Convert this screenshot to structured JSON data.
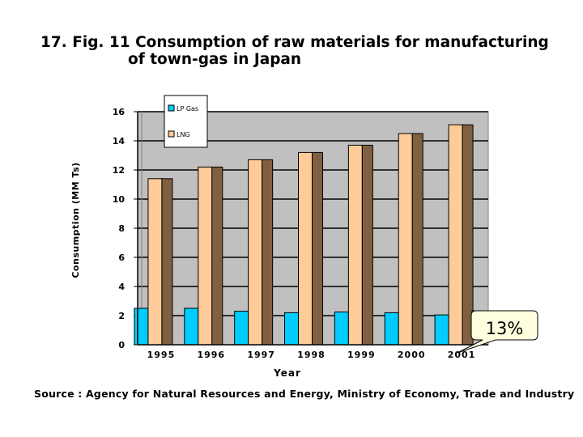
{
  "title_line1": "17. Fig. 11  Consumption of raw materials for manufacturing",
  "title_line2": "of town-gas in Japan",
  "source": "Source : Agency for Natural Resources and Energy, Ministry of Economy, Trade and Industry",
  "callout": "13%",
  "colors": {
    "lp": "#00CCFF",
    "lng": "#FFCC99",
    "lng_side": "#806040",
    "plot_bg": "#C0C0C0"
  },
  "chart_data": {
    "type": "bar",
    "title": "Consumption of raw materials for manufacturing of town-gas in Japan",
    "xlabel": "Year",
    "ylabel": "Consumption (MM Ts)",
    "ylim": [
      0,
      16
    ],
    "yticks": [
      "0",
      "2",
      "4",
      "6",
      "8",
      "10",
      "12",
      "14",
      "16"
    ],
    "grid": true,
    "legend": "top-left",
    "categories": [
      "1995",
      "1996",
      "1997",
      "1998",
      "1999",
      "2000",
      "2001"
    ],
    "series": [
      {
        "name": "LP Gas",
        "values": [
          2.5,
          2.5,
          2.3,
          2.2,
          2.25,
          2.2,
          2.05
        ]
      },
      {
        "name": "LNG",
        "values": [
          11.4,
          12.2,
          12.7,
          13.2,
          13.7,
          14.5,
          15.1
        ]
      }
    ],
    "annotations": [
      "13%"
    ]
  }
}
